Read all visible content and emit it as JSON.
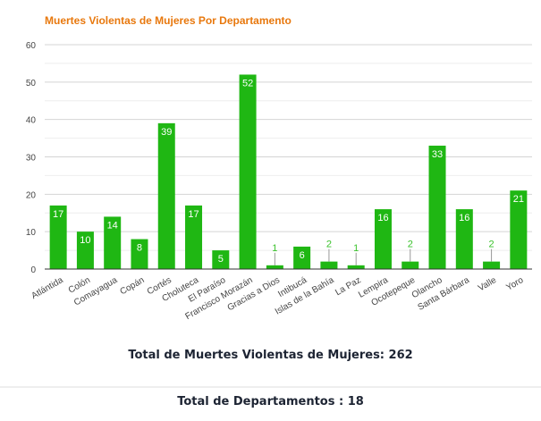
{
  "chart_data": {
    "type": "bar",
    "title": "Muertes Violentas de Mujeres Por Departamento",
    "categories": [
      "Atlántida",
      "Colón",
      "Comayagua",
      "Copán",
      "Cortés",
      "Choluteca",
      "El Paraíso",
      "Francisco Morazán",
      "Gracias a Dios",
      "Intibucá",
      "Islas de la Bahía",
      "La Paz",
      "Lempira",
      "Ocotepeque",
      "Olancho",
      "Santa Bárbara",
      "Valle",
      "Yoro"
    ],
    "values": [
      17,
      10,
      14,
      8,
      39,
      17,
      5,
      52,
      1,
      6,
      2,
      1,
      16,
      2,
      33,
      16,
      2,
      21
    ],
    "ylim": [
      0,
      60
    ],
    "yticks": [
      0,
      10,
      20,
      30,
      40,
      50,
      60
    ],
    "grid": true,
    "bar_color": "#1fb713",
    "xlabel": "",
    "ylabel": ""
  },
  "summary": {
    "total_deaths": "Total de Muertes Violentas de Mujeres: 262",
    "total_departments": "Total de Departamentos : 18"
  }
}
